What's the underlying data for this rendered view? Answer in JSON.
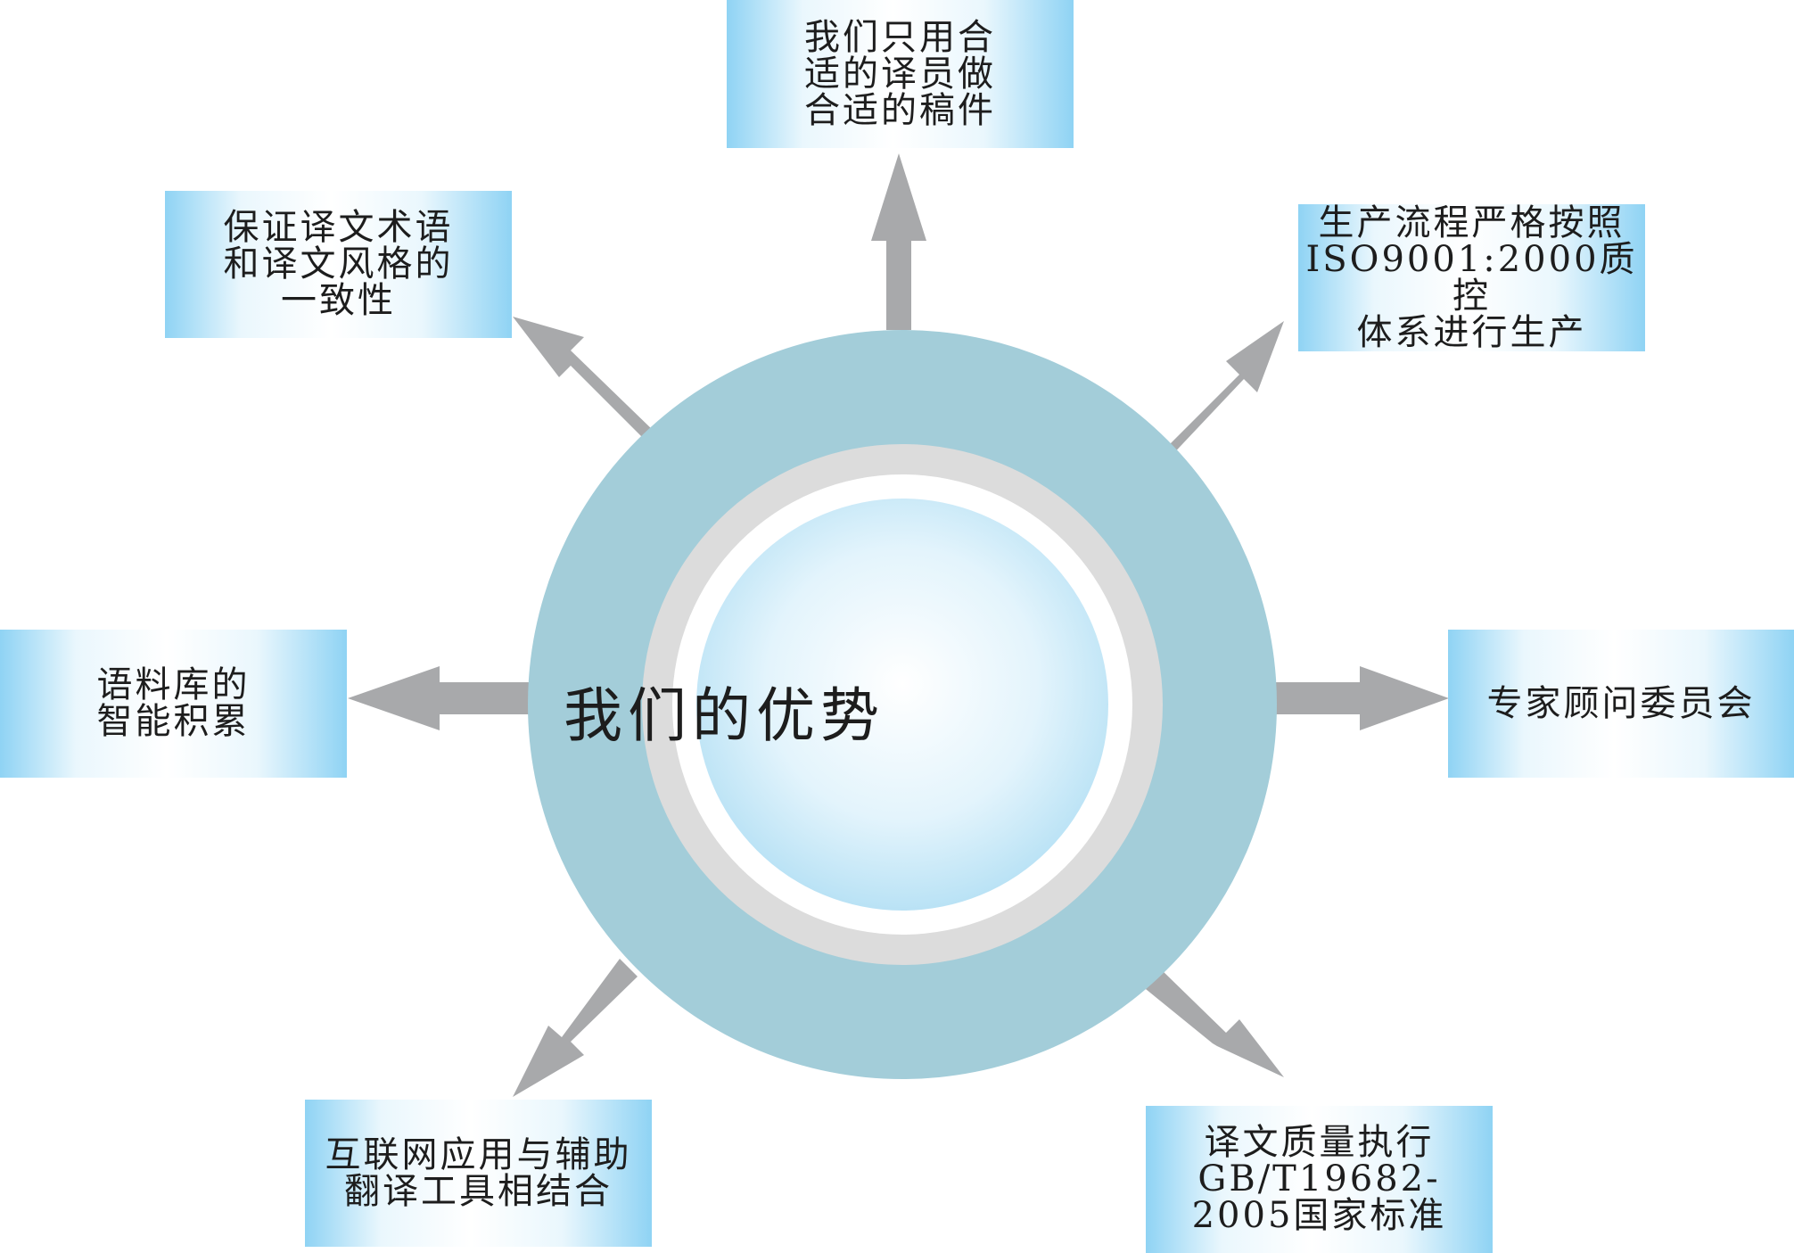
{
  "center": {
    "title": "我们的优势",
    "colors": {
      "outer_ring": "#a3cdd9",
      "gray_ring": "#dcdcdc",
      "white_ring": "#ffffff",
      "core_center": "#ffffff",
      "core_edge": "#b9e2f5"
    }
  },
  "arrows": {
    "color": "#a8a9ab"
  },
  "boxes": [
    {
      "id": "top",
      "text": "我们只用合\n适的译员做\n合适的稿件"
    },
    {
      "id": "top-right",
      "text": "生产流程严格按照\nISO9001:2000质控\n体系进行生产"
    },
    {
      "id": "right",
      "text": "专家顾问委员会"
    },
    {
      "id": "bottom-right",
      "text": "译文质量执行\nGB/T19682-\n2005国家标准"
    },
    {
      "id": "bottom-left",
      "text": "互联网应用与辅助\n翻译工具相结合"
    },
    {
      "id": "left",
      "text": "语料库的\n智能积累"
    },
    {
      "id": "top-left",
      "text": "保证译文术语\n和译文风格的\n一致性"
    }
  ]
}
